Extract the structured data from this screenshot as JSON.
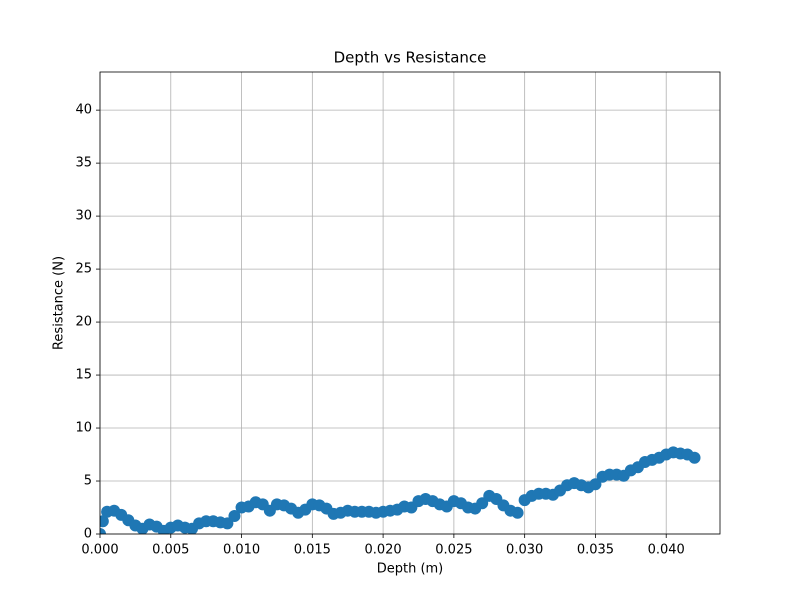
{
  "chart_data": {
    "type": "scatter",
    "title": "Depth vs Resistance",
    "x_label": "Depth (m)",
    "y_label": "Resistance (N)",
    "color": "#1f77b4",
    "grid": true,
    "xlim": [
      0,
      0.0438
    ],
    "ylim": [
      0,
      43.6
    ],
    "xticks": [
      {
        "value": 0,
        "label": "0.000"
      },
      0.005,
      {
        "value": 0.01,
        "label": "0.010"
      },
      0.015,
      {
        "value": 0.02,
        "label": "0.020"
      },
      0.025,
      {
        "value": 0.03,
        "label": "0.030"
      },
      0.035,
      {
        "value": 0.04,
        "label": "0.040"
      }
    ],
    "yticks": [
      0,
      5,
      10,
      15,
      20,
      25,
      30,
      35,
      40
    ],
    "x": [
      0,
      0.0002,
      0.0005,
      0.001,
      0.0015,
      0.002,
      0.0025,
      0.003,
      0.0035,
      0.004,
      0.0045,
      0.005,
      0.0055,
      0.006,
      0.0065,
      0.007,
      0.0075,
      0.008,
      0.0085,
      0.009,
      0.0095,
      0.01,
      0.0105,
      0.011,
      0.0115,
      0.012,
      0.0125,
      0.013,
      0.0135,
      0.014,
      0.0145,
      0.015,
      0.0155,
      0.016,
      0.0165,
      0.017,
      0.0175,
      0.018,
      0.0185,
      0.019,
      0.0195,
      0.02,
      0.0205,
      0.021,
      0.0215,
      0.022,
      0.0225,
      0.023,
      0.0235,
      0.024,
      0.0245,
      0.025,
      0.0255,
      0.026,
      0.0265,
      0.027,
      0.0275,
      0.028,
      0.0285,
      0.029,
      0.0295,
      0.03,
      0.0305,
      0.031,
      0.0315,
      0.032,
      0.0325,
      0.033,
      0.0335,
      0.034,
      0.0345,
      0.035,
      0.0355,
      0.036,
      0.0365,
      0.037,
      0.0375,
      0.038,
      0.0385,
      0.039,
      0.0395,
      0.04,
      0.0405,
      0.041,
      0.0415,
      0.042
    ],
    "values": [
      0,
      1.2,
      2.1,
      2.2,
      1.8,
      1.3,
      0.8,
      0.5,
      0.9,
      0.7,
      0.3,
      0.6,
      0.8,
      0.6,
      0.5,
      1.0,
      1.2,
      1.2,
      1.1,
      1.0,
      1.7,
      2.5,
      2.6,
      3.0,
      2.8,
      2.2,
      2.8,
      2.7,
      2.4,
      2.0,
      2.3,
      2.8,
      2.7,
      2.4,
      1.9,
      2.0,
      2.2,
      2.1,
      2.1,
      2.1,
      2.0,
      2.1,
      2.2,
      2.3,
      2.6,
      2.5,
      3.1,
      3.3,
      3.1,
      2.8,
      2.6,
      3.1,
      2.9,
      2.5,
      2.4,
      2.9,
      3.6,
      3.3,
      2.7,
      2.2,
      2.0,
      3.2,
      3.6,
      3.8,
      3.8,
      3.7,
      4.1,
      4.6,
      4.8,
      4.6,
      4.4,
      4.7,
      5.4,
      5.6,
      5.6,
      5.5,
      6.0,
      6.3,
      6.8,
      7.0,
      7.2,
      7.5,
      7.7,
      7.6,
      7.5,
      7.2
    ]
  }
}
